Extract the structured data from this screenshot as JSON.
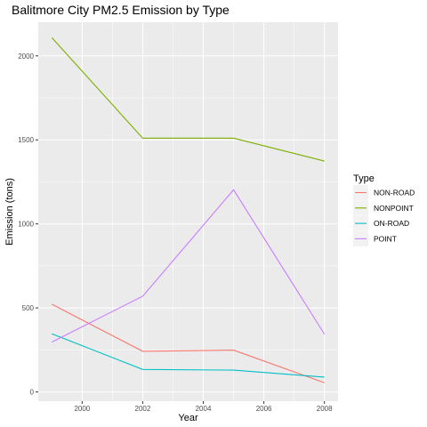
{
  "chart_data": {
    "type": "line",
    "title": "Balitmore City PM2.5 Emission by Type",
    "xlabel": "Year",
    "ylabel": "Emission (tons)",
    "x": [
      1999,
      2002,
      2005,
      2008
    ],
    "xlim": [
      1998.55,
      2008.45
    ],
    "ylim": [
      -55,
      2200
    ],
    "x_ticks": [
      2000,
      2002,
      2004,
      2006,
      2008
    ],
    "y_ticks": [
      0,
      500,
      1000,
      1500,
      2000
    ],
    "grid": true,
    "legend": {
      "title": "Type",
      "placement": "right"
    },
    "series": [
      {
        "name": "NON-ROAD",
        "color": "#F8766D",
        "values": [
          522,
          242,
          249,
          55
        ]
      },
      {
        "name": "NONPOINT",
        "color": "#7CAE00",
        "values": [
          2108,
          1510,
          1510,
          1374
        ]
      },
      {
        "name": "ON-ROAD",
        "color": "#00BFC4",
        "values": [
          346,
          134,
          130,
          88
        ]
      },
      {
        "name": "POINT",
        "color": "#C77CFF",
        "values": [
          297,
          570,
          1203,
          344
        ]
      }
    ]
  }
}
